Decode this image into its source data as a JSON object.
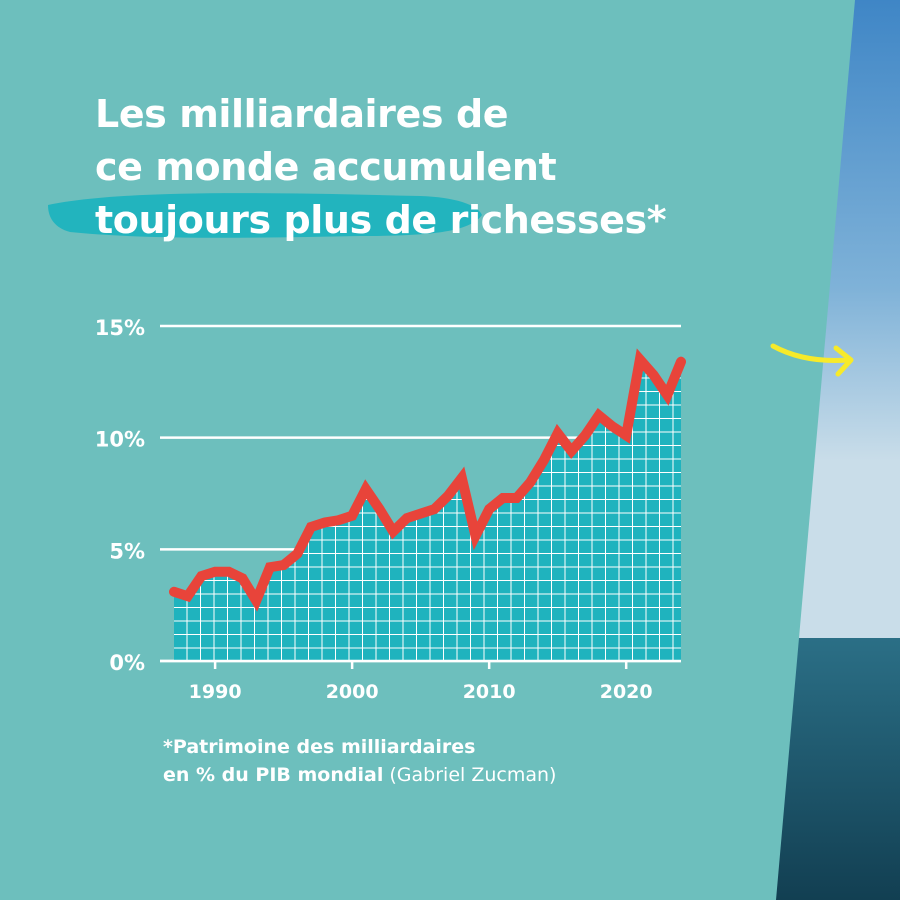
{
  "colors": {
    "background": "#6dbfbd",
    "accent": "#1fb3be",
    "line": "#e8443a",
    "sea_sky": "#7fb2d8",
    "sea_water": "#1f5f78",
    "arrow": "#f7ea2a"
  },
  "title": {
    "line1": "Les milliardaires de",
    "line2": "ce monde accumulent",
    "line3": "toujours plus de richesses*"
  },
  "footnote": {
    "bold_line1": "*Patrimoine des milliardaires",
    "bold_line2": "en % du PIB mondial",
    "source": "(Gabriel Zucman)"
  },
  "decor": {
    "arrow_icon": "arrow-right-icon"
  },
  "chart_data": {
    "type": "area",
    "title": "",
    "xlabel": "",
    "ylabel": "",
    "xlim": [
      1987,
      2024
    ],
    "ylim": [
      0,
      15
    ],
    "yticks": [
      0,
      5,
      10,
      15
    ],
    "ytick_labels": [
      "0%",
      "5%",
      "10%",
      "15%"
    ],
    "xticks": [
      1990,
      2000,
      2010,
      2020
    ],
    "xtick_labels": [
      "1990",
      "2000",
      "2010",
      "2020"
    ],
    "grid": true,
    "series": [
      {
        "x": [
          1987,
          1988,
          1989,
          1990,
          1991,
          1992,
          1993,
          1994,
          1995,
          1996,
          1997,
          1998,
          1999,
          2000,
          2001,
          2002,
          2003,
          2004,
          2005,
          2006,
          2007,
          2008,
          2009,
          2010,
          2011,
          2012,
          2013,
          2014,
          2015,
          2016,
          2017,
          2018,
          2019,
          2020,
          2021,
          2022,
          2023,
          2024
        ],
        "y": [
          3.1,
          2.9,
          3.8,
          4.0,
          4.0,
          3.7,
          2.7,
          4.2,
          4.3,
          4.8,
          6.0,
          6.2,
          6.3,
          6.5,
          7.7,
          6.8,
          5.8,
          6.4,
          6.6,
          6.8,
          7.4,
          8.2,
          5.6,
          6.8,
          7.3,
          7.3,
          8.0,
          9.0,
          10.2,
          9.4,
          10.1,
          11.0,
          10.5,
          10.1,
          13.5,
          12.8,
          11.9,
          13.4
        ]
      }
    ]
  }
}
